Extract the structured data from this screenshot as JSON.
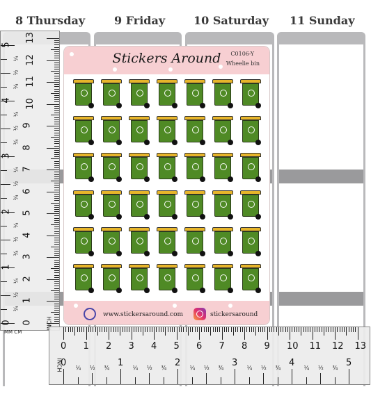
{
  "planner": {
    "days": [
      "8 Thursday",
      "9 Friday",
      "10 Saturday",
      "11 Sunday"
    ]
  },
  "sheet": {
    "brand": "Stickers Around",
    "code": "C0106-Y",
    "subtitle": "Wheelie bin",
    "website": "www.stickersaround.com",
    "social": "stickersaround",
    "sticker_rows": 6,
    "sticker_cols": 7,
    "colors": {
      "header": "#f7cfd2",
      "lid": "#e7b52a",
      "bin": "#4f8a25"
    },
    "icons": [
      "wheelie-bin-icon",
      "recycle-icon",
      "globe-icon",
      "instagram-icon"
    ]
  },
  "ruler_vertical": {
    "inch_numbers": [
      "5",
      "4",
      "3",
      "2",
      "1",
      "0"
    ],
    "cm_numbers": [
      "13",
      "12",
      "11",
      "10",
      "9",
      "8",
      "7",
      "6",
      "5",
      "4",
      "3",
      "2",
      "1",
      "0"
    ],
    "unit_label": "MM CM",
    "inch_label": "INCH"
  },
  "ruler_horizontal": {
    "cm_numbers": [
      "0",
      "1",
      "2",
      "3",
      "4",
      "5",
      "6",
      "7",
      "8",
      "9",
      "10",
      "11",
      "12",
      "13"
    ],
    "inch_numbers": [
      "0",
      "1",
      "2",
      "3",
      "4",
      "5"
    ],
    "inch_label": "INCH",
    "fractions": [
      "¼",
      "½",
      "¾"
    ]
  }
}
